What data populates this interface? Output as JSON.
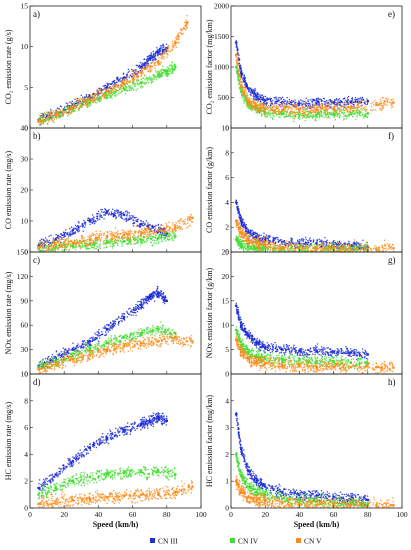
{
  "figure": {
    "legend": [
      {
        "label": "CN III",
        "color": "#1f2fd6"
      },
      {
        "label": "CN IV",
        "color": "#44dd33"
      },
      {
        "label": "CN V",
        "color": "#ff8c1a"
      }
    ]
  },
  "chart_data": [
    {
      "type": "scatter",
      "panel": "a)",
      "title": "",
      "xlabel": "",
      "ylabel": "CO₂ emission rate (g/s)",
      "xlim": [
        0,
        100
      ],
      "ylim": [
        0,
        15
      ],
      "xticks": [
        "0",
        "20",
        "40",
        "60",
        "80",
        "100"
      ],
      "yticks": [
        "0",
        "5",
        "10",
        "15"
      ],
      "series": [
        {
          "name": "CN III",
          "color": "#1f2fd6",
          "x": [
            5,
            15,
            25,
            35,
            45,
            55,
            65,
            70,
            75,
            80
          ],
          "y": [
            1.0,
            1.8,
            2.8,
            3.8,
            5.0,
            6.2,
            7.5,
            8.5,
            9.3,
            9.8
          ]
        },
        {
          "name": "CN IV",
          "color": "#44dd33",
          "x": [
            5,
            15,
            25,
            35,
            45,
            55,
            65,
            75,
            80,
            85
          ],
          "y": [
            0.8,
            1.5,
            2.3,
            3.2,
            4.0,
            4.8,
            5.5,
            6.5,
            7.0,
            7.5
          ]
        },
        {
          "name": "CN V",
          "color": "#ff8c1a",
          "x": [
            5,
            15,
            25,
            35,
            45,
            55,
            65,
            75,
            85,
            92
          ],
          "y": [
            0.9,
            1.7,
            2.6,
            3.5,
            4.5,
            5.5,
            6.8,
            8.2,
            10.5,
            13.0
          ]
        }
      ]
    },
    {
      "type": "scatter",
      "panel": "b)",
      "title": "",
      "xlabel": "",
      "ylabel": "CO emission rate (mg/s)",
      "xlim": [
        0,
        100
      ],
      "ylim": [
        0,
        40
      ],
      "xticks": [
        "0",
        "20",
        "40",
        "60",
        "80",
        "100"
      ],
      "yticks": [
        "0",
        "10",
        "20",
        "30",
        "40"
      ],
      "series": [
        {
          "name": "CN III",
          "color": "#1f2fd6",
          "x": [
            5,
            15,
            25,
            35,
            45,
            55,
            65,
            75,
            80
          ],
          "y": [
            2,
            4,
            7,
            10,
            13,
            12,
            9,
            7,
            6
          ]
        },
        {
          "name": "CN IV",
          "color": "#44dd33",
          "x": [
            5,
            15,
            25,
            35,
            45,
            55,
            65,
            75,
            85
          ],
          "y": [
            1,
            1.5,
            2,
            2.5,
            3,
            3.5,
            4,
            4.5,
            5
          ]
        },
        {
          "name": "CN V",
          "color": "#ff8c1a",
          "x": [
            5,
            15,
            25,
            35,
            45,
            55,
            65,
            75,
            85,
            95
          ],
          "y": [
            1.5,
            2.5,
            3,
            4,
            5,
            5.5,
            6,
            7,
            8,
            11
          ]
        }
      ]
    },
    {
      "type": "scatter",
      "panel": "c)",
      "title": "",
      "xlabel": "",
      "ylabel": "NOx emission rate (mg/s)",
      "xlim": [
        0,
        100
      ],
      "ylim": [
        0,
        150
      ],
      "xticks": [
        "0",
        "20",
        "40",
        "60",
        "80",
        "100"
      ],
      "yticks": [
        "0",
        "30",
        "60",
        "90",
        "120",
        "150"
      ],
      "series": [
        {
          "name": "CN III",
          "color": "#1f2fd6",
          "x": [
            5,
            15,
            25,
            35,
            45,
            55,
            65,
            70,
            75,
            80
          ],
          "y": [
            10,
            20,
            30,
            40,
            55,
            70,
            85,
            95,
            100,
            90
          ]
        },
        {
          "name": "CN IV",
          "color": "#44dd33",
          "x": [
            5,
            15,
            25,
            35,
            45,
            55,
            65,
            75,
            85
          ],
          "y": [
            8,
            15,
            22,
            30,
            38,
            45,
            50,
            55,
            50
          ]
        },
        {
          "name": "CN V",
          "color": "#ff8c1a",
          "x": [
            5,
            15,
            25,
            35,
            45,
            55,
            65,
            75,
            85,
            95
          ],
          "y": [
            6,
            12,
            18,
            24,
            30,
            35,
            38,
            40,
            45,
            40
          ]
        }
      ]
    },
    {
      "type": "scatter",
      "panel": "d)",
      "title": "",
      "xlabel": "Speed (km/h)",
      "ylabel": "HC emission rate (mg/s)",
      "xlim": [
        0,
        100
      ],
      "ylim": [
        0,
        10
      ],
      "xticks": [
        "0",
        "20",
        "40",
        "60",
        "80",
        "100"
      ],
      "yticks": [
        "0",
        "2",
        "4",
        "6",
        "8",
        "10"
      ],
      "series": [
        {
          "name": "CN III",
          "color": "#1f2fd6",
          "x": [
            5,
            15,
            25,
            35,
            45,
            55,
            65,
            70,
            75,
            80
          ],
          "y": [
            1.5,
            2.5,
            3.5,
            4.5,
            5.2,
            5.8,
            6.2,
            6.5,
            6.8,
            6.5
          ]
        },
        {
          "name": "CN IV",
          "color": "#44dd33",
          "x": [
            5,
            15,
            25,
            35,
            45,
            55,
            65,
            75,
            85
          ],
          "y": [
            1.0,
            1.5,
            2.0,
            2.3,
            2.5,
            2.6,
            2.7,
            2.8,
            2.5
          ]
        },
        {
          "name": "CN V",
          "color": "#ff8c1a",
          "x": [
            5,
            15,
            25,
            35,
            45,
            55,
            65,
            75,
            85,
            95
          ],
          "y": [
            0.3,
            0.5,
            0.6,
            0.7,
            0.8,
            0.9,
            1.0,
            1.0,
            1.2,
            1.6
          ]
        }
      ]
    },
    {
      "type": "scatter",
      "panel": "e)",
      "title": "",
      "xlabel": "",
      "ylabel": "CO₂ emission factor (mg/km)",
      "xlim": [
        0,
        100
      ],
      "ylim": [
        0,
        2000
      ],
      "xticks": [
        "0",
        "20",
        "40",
        "60",
        "80",
        "100"
      ],
      "yticks": [
        "0",
        "500",
        "1000",
        "1500",
        "2000"
      ],
      "series": [
        {
          "name": "CN III",
          "color": "#1f2fd6",
          "x": [
            3,
            6,
            10,
            15,
            20,
            30,
            40,
            50,
            60,
            70,
            80
          ],
          "y": [
            1400,
            900,
            650,
            520,
            450,
            420,
            400,
            410,
            420,
            430,
            440
          ]
        },
        {
          "name": "CN IV",
          "color": "#44dd33",
          "x": [
            3,
            6,
            10,
            15,
            20,
            30,
            40,
            50,
            60,
            70,
            80
          ],
          "y": [
            1000,
            600,
            400,
            320,
            260,
            230,
            220,
            220,
            230,
            230,
            240
          ]
        },
        {
          "name": "CN V",
          "color": "#ff8c1a",
          "x": [
            3,
            6,
            10,
            15,
            20,
            30,
            40,
            50,
            60,
            70,
            85,
            95
          ],
          "y": [
            1200,
            700,
            450,
            360,
            320,
            300,
            300,
            310,
            320,
            340,
            380,
            420
          ]
        }
      ]
    },
    {
      "type": "scatter",
      "panel": "f)",
      "title": "",
      "xlabel": "",
      "ylabel": "CO emission factor (g/km)",
      "xlim": [
        0,
        100
      ],
      "ylim": [
        0,
        10
      ],
      "xticks": [
        "0",
        "20",
        "40",
        "60",
        "80",
        "100"
      ],
      "yticks": [
        "0",
        "2",
        "4",
        "6",
        "8",
        "10"
      ],
      "series": [
        {
          "name": "CN III",
          "color": "#1f2fd6",
          "x": [
            3,
            6,
            10,
            15,
            20,
            30,
            40,
            50,
            60,
            70,
            80
          ],
          "y": [
            4.0,
            2.5,
            1.6,
            1.2,
            1.0,
            0.8,
            0.7,
            0.7,
            0.6,
            0.5,
            0.4
          ]
        },
        {
          "name": "CN IV",
          "color": "#44dd33",
          "x": [
            3,
            6,
            10,
            15,
            20,
            30,
            40,
            50,
            60,
            70,
            80
          ],
          "y": [
            1.0,
            0.6,
            0.4,
            0.3,
            0.3,
            0.2,
            0.2,
            0.2,
            0.2,
            0.2,
            0.2
          ]
        },
        {
          "name": "CN V",
          "color": "#ff8c1a",
          "x": [
            3,
            6,
            10,
            15,
            20,
            30,
            40,
            50,
            60,
            70,
            85,
            95
          ],
          "y": [
            2.5,
            1.5,
            1.0,
            0.7,
            0.6,
            0.4,
            0.3,
            0.3,
            0.3,
            0.3,
            0.2,
            0.3
          ]
        }
      ]
    },
    {
      "type": "scatter",
      "panel": "g)",
      "title": "",
      "xlabel": "",
      "ylabel": "NOx emission factor (g/km)",
      "xlim": [
        0,
        100
      ],
      "ylim": [
        0,
        25
      ],
      "xticks": [
        "0",
        "20",
        "40",
        "60",
        "80",
        "100"
      ],
      "yticks": [
        "0",
        "5",
        "10",
        "15",
        "20",
        "25"
      ],
      "series": [
        {
          "name": "CN III",
          "color": "#1f2fd6",
          "x": [
            3,
            6,
            10,
            15,
            20,
            30,
            40,
            50,
            60,
            70,
            80
          ],
          "y": [
            14,
            10,
            8,
            6.5,
            5.5,
            5,
            4.8,
            4.8,
            4.6,
            4.4,
            4.0
          ]
        },
        {
          "name": "CN IV",
          "color": "#44dd33",
          "x": [
            3,
            6,
            10,
            15,
            20,
            30,
            40,
            50,
            60,
            70,
            80
          ],
          "y": [
            9,
            6,
            4.5,
            3.5,
            3.2,
            3.0,
            2.8,
            2.6,
            2.5,
            2.3,
            2.2
          ]
        },
        {
          "name": "CN V",
          "color": "#ff8c1a",
          "x": [
            3,
            6,
            10,
            15,
            20,
            30,
            40,
            50,
            60,
            70,
            85,
            95
          ],
          "y": [
            7,
            4.5,
            3.2,
            2.5,
            2.2,
            1.8,
            1.6,
            1.5,
            1.5,
            1.4,
            1.4,
            1.3
          ]
        }
      ]
    },
    {
      "type": "scatter",
      "panel": "h)",
      "title": "",
      "xlabel": "Speed (km/h)",
      "ylabel": "HC emission factor (mg/km)",
      "xlim": [
        0,
        100
      ],
      "ylim": [
        0,
        5
      ],
      "xticks": [
        "0",
        "20",
        "40",
        "60",
        "80",
        "100"
      ],
      "yticks": [
        "0",
        "1",
        "2",
        "3",
        "4"
      ],
      "series": [
        {
          "name": "CN III",
          "color": "#1f2fd6",
          "x": [
            3,
            6,
            10,
            15,
            20,
            30,
            40,
            50,
            60,
            70,
            80
          ],
          "y": [
            3.5,
            2.2,
            1.4,
            1.0,
            0.8,
            0.6,
            0.5,
            0.45,
            0.4,
            0.35,
            0.3
          ]
        },
        {
          "name": "CN IV",
          "color": "#44dd33",
          "x": [
            3,
            6,
            10,
            15,
            20,
            30,
            40,
            50,
            60,
            70,
            80
          ],
          "y": [
            2.0,
            1.2,
            0.8,
            0.6,
            0.5,
            0.35,
            0.3,
            0.25,
            0.2,
            0.2,
            0.15
          ]
        },
        {
          "name": "CN V",
          "color": "#ff8c1a",
          "x": [
            3,
            6,
            10,
            15,
            20,
            30,
            40,
            50,
            60,
            70,
            85,
            95
          ],
          "y": [
            1.0,
            0.6,
            0.4,
            0.3,
            0.25,
            0.2,
            0.15,
            0.12,
            0.1,
            0.1,
            0.1,
            0.1
          ]
        }
      ]
    }
  ]
}
